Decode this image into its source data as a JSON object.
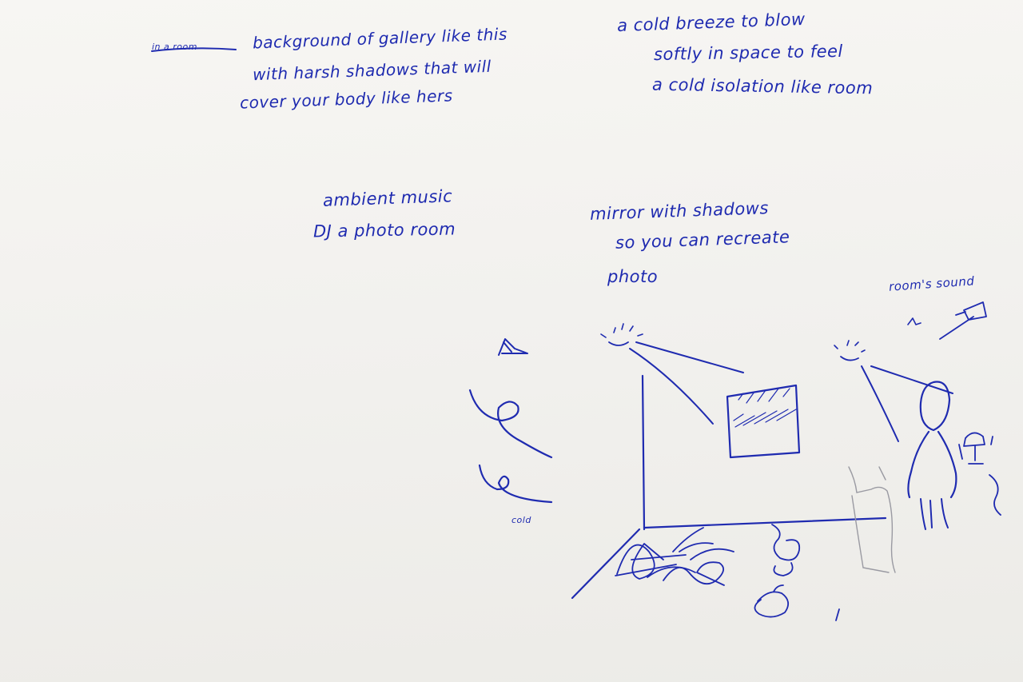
{
  "palette": {
    "paper": "#f3f2ef",
    "ink": "#1f2bb0",
    "pencil": "#9a9aa2"
  },
  "notes": {
    "gallery": {
      "struck": "in a room",
      "line1": "background of gallery like this",
      "line2": "with harsh shadows that will",
      "line3": "cover your body like hers"
    },
    "breeze": {
      "line1": "a cold breeze to blow",
      "line2": "softly in space to feel",
      "line3": "a cold isolation like room"
    },
    "music": {
      "line1": "ambient music",
      "line2": "DJ a photo room"
    },
    "mirror": {
      "line1": "mirror with shadows",
      "line2": "so you can recreate",
      "line3": "photo"
    },
    "sound": "room's sound",
    "cold": "cold"
  }
}
